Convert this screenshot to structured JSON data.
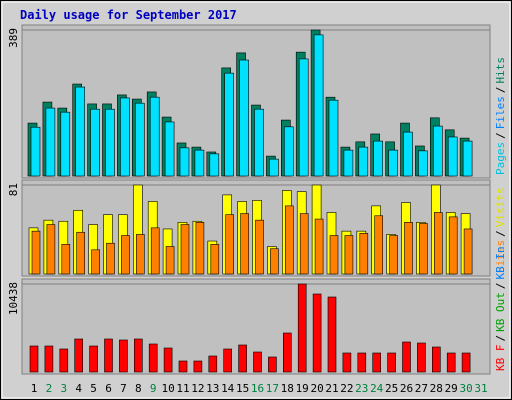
{
  "chart_data": [
    {
      "type": "bar",
      "title": "Daily usage for September 2017",
      "categories": [
        "1",
        "2",
        "3",
        "4",
        "5",
        "6",
        "7",
        "8",
        "9",
        "10",
        "11",
        "12",
        "13",
        "14",
        "15",
        "16",
        "17",
        "18",
        "19",
        "20",
        "21",
        "22",
        "23",
        "24",
        "25",
        "26",
        "27",
        "28",
        "29",
        "30",
        "31"
      ],
      "category_colors": [
        "#000000",
        "#008040",
        "#008040",
        "#000000",
        "#000000",
        "#000000",
        "#000000",
        "#000000",
        "#008040",
        "#000000",
        "#000000",
        "#000000",
        "#000000",
        "#000000",
        "#000000",
        "#008040",
        "#008040",
        "#000000",
        "#000000",
        "#000000",
        "#000000",
        "#000000",
        "#008040",
        "#008040",
        "#000000",
        "#000000",
        "#000000",
        "#000000",
        "#000000",
        "#008040",
        "#008040"
      ],
      "ylim": [
        0,
        389
      ],
      "yticks": [
        389
      ],
      "legend_separator": "/",
      "legend": [
        {
          "name": "Pages",
          "color": "#00c0e0"
        },
        {
          "name": "Files",
          "color": "#0080ff"
        },
        {
          "name": "Hits",
          "color": "#008060"
        }
      ],
      "series": [
        {
          "color": "#008060",
          "values": [
            141,
            197,
            181,
            245,
            192,
            192,
            216,
            205,
            224,
            157,
            88,
            77,
            64,
            288,
            328,
            189,
            53,
            149,
            330,
            389,
            210,
            77,
            91,
            112,
            91,
            141,
            80,
            155,
            123,
            101,
            0
          ]
        },
        {
          "color": "#00e0ff",
          "values": [
            130,
            181,
            170,
            237,
            178,
            178,
            208,
            194,
            210,
            144,
            75,
            69,
            59,
            274,
            309,
            178,
            45,
            131,
            312,
            376,
            202,
            69,
            77,
            93,
            69,
            117,
            67,
            133,
            104,
            93,
            0
          ]
        }
      ]
    },
    {
      "type": "bar",
      "ylim": [
        0,
        81
      ],
      "yticks": [
        81
      ],
      "legend": [
        {
          "name": "Sites",
          "color": "#ff8000"
        },
        {
          "name": "Visits",
          "color": "#e0e000"
        }
      ],
      "series": [
        {
          "color": "#ffff00",
          "values": [
            42,
            49,
            48,
            58,
            45,
            54,
            54,
            81,
            66,
            41,
            47,
            48,
            30,
            72,
            66,
            67,
            25,
            76,
            75,
            81,
            56,
            39,
            39,
            62,
            36,
            65,
            47,
            81,
            56,
            55,
            0
          ]
        },
        {
          "color": "#ff8000",
          "values": [
            39,
            45,
            27,
            38,
            22,
            28,
            35,
            36,
            42,
            25,
            45,
            47,
            27,
            54,
            55,
            49,
            23,
            62,
            55,
            50,
            35,
            35,
            37,
            53,
            35,
            47,
            46,
            56,
            52,
            41,
            0
          ]
        }
      ]
    },
    {
      "type": "bar",
      "ylim": [
        0,
        10438
      ],
      "yticks": [
        10438
      ],
      "legend": [
        {
          "name": "KB F",
          "color": "#ff0000"
        },
        {
          "name": "KB Out",
          "color": "#00a000"
        },
        {
          "name": "KB In",
          "color": "#0080ff"
        }
      ],
      "series": [
        {
          "color": "#ff0000",
          "values": [
            3084,
            3084,
            2728,
            3914,
            3084,
            3914,
            3796,
            3914,
            3321,
            2847,
            1305,
            1305,
            1898,
            2728,
            3203,
            2372,
            1779,
            4626,
            10438,
            9252,
            8896,
            2254,
            2254,
            2254,
            2254,
            3558,
            3440,
            2965,
            2254,
            2254,
            0
          ]
        }
      ]
    }
  ]
}
